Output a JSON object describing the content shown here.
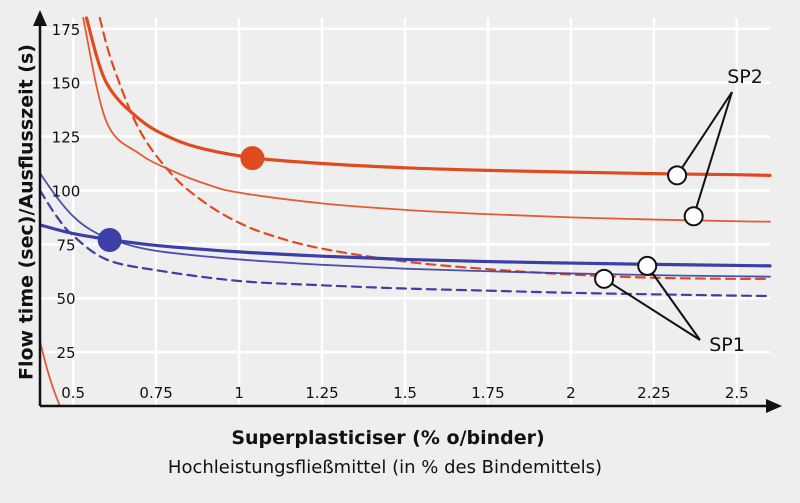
{
  "chart_data": {
    "type": "line",
    "xlabel": "Superplasticiser (% o/binder)",
    "xlabel_secondary": "Hochleistungsfließmittel (in % des Bindemittels)",
    "ylabel": "Flow time (sec)/Ausflusszeit (s)",
    "xlim": [
      0.4,
      2.6
    ],
    "ylim": [
      0,
      180
    ],
    "x_ticks": [
      "0.5",
      "0.75",
      "1",
      "1.25",
      "1.5",
      "1.75",
      "2",
      "2.25",
      "2.5"
    ],
    "y_ticks": [
      "25",
      "50",
      "75",
      "100",
      "125",
      "150",
      "175"
    ],
    "grid": true,
    "annotations": [
      {
        "text": "SP2",
        "targets": [
          [
            2.32,
            107
          ],
          [
            2.37,
            88
          ]
        ]
      },
      {
        "text": "SP1",
        "targets": [
          [
            2.1,
            59
          ],
          [
            2.23,
            65
          ]
        ]
      }
    ],
    "colors": {
      "sp2": "#e04a1f",
      "sp1": "#3b3fa6",
      "grid": "#ffffff",
      "background": "#eeeeee"
    },
    "series": [
      {
        "group": "SP2",
        "style": "solid-thick",
        "color": "#e04a1f",
        "x": [
          0.54,
          0.6,
          0.7,
          0.8,
          0.9,
          1.05,
          1.25,
          1.5,
          1.75,
          2.0,
          2.25,
          2.5,
          2.6
        ],
        "y": [
          180,
          150,
          133,
          124,
          119,
          115,
          112.5,
          110.5,
          109.3,
          108.5,
          107.8,
          107.3,
          107
        ]
      },
      {
        "group": "SP2",
        "style": "solid-thin",
        "color": "#e04a1f",
        "x": [
          0.53,
          0.6,
          0.7,
          0.8,
          0.9,
          1.0,
          1.25,
          1.5,
          1.75,
          2.0,
          2.25,
          2.5,
          2.6
        ],
        "y": [
          180,
          132,
          117,
          109,
          103,
          99,
          94,
          91,
          89,
          87.5,
          86.5,
          85.7,
          85.5
        ]
      },
      {
        "group": "SP2",
        "style": "dashed",
        "color": "#e04a1f",
        "x": [
          0.58,
          0.62,
          0.7,
          0.8,
          0.9,
          1.0,
          1.1,
          1.25,
          1.5,
          1.75,
          2.0,
          2.25,
          2.5,
          2.6
        ],
        "y": [
          180,
          158,
          128,
          107,
          94,
          85,
          79,
          73,
          67,
          63.5,
          61,
          59.5,
          59,
          59
        ]
      },
      {
        "group": "SP2",
        "style": "solid-thin",
        "color": "#e04a1f",
        "x": [
          0.4,
          0.42,
          0.44,
          0.46
        ],
        "y": [
          30,
          18,
          8,
          0
        ]
      },
      {
        "group": "SP1",
        "style": "solid-thick",
        "color": "#3b3fa6",
        "x": [
          0.4,
          0.5,
          0.62,
          0.75,
          1.0,
          1.25,
          1.5,
          1.75,
          2.0,
          2.25,
          2.5,
          2.6
        ],
        "y": [
          84,
          80,
          77,
          74.5,
          71.5,
          69.5,
          68,
          67,
          66.3,
          65.7,
          65.2,
          65
        ]
      },
      {
        "group": "SP1",
        "style": "solid-thin",
        "color": "#3b3fa6",
        "x": [
          0.4,
          0.45,
          0.5,
          0.55,
          0.62,
          0.75,
          1.0,
          1.25,
          1.5,
          1.75,
          2.0,
          2.25,
          2.5,
          2.6
        ],
        "y": [
          108,
          97,
          88,
          82,
          77,
          72,
          68,
          65.5,
          63.7,
          62.5,
          61.5,
          60.7,
          60.2,
          60
        ]
      },
      {
        "group": "SP1",
        "style": "dashed",
        "color": "#3b3fa6",
        "x": [
          0.4,
          0.45,
          0.5,
          0.6,
          0.75,
          1.0,
          1.25,
          1.5,
          1.75,
          2.0,
          2.25,
          2.5,
          2.6
        ],
        "y": [
          100,
          88,
          79,
          68,
          63,
          58,
          56,
          54.5,
          53.5,
          52.5,
          51.8,
          51.2,
          51
        ]
      }
    ],
    "markers": [
      {
        "group": "SP2",
        "x": 1.04,
        "y": 115,
        "color": "#e04a1f"
      },
      {
        "group": "SP1",
        "x": 0.61,
        "y": 77,
        "color": "#3b3fa6"
      }
    ]
  }
}
